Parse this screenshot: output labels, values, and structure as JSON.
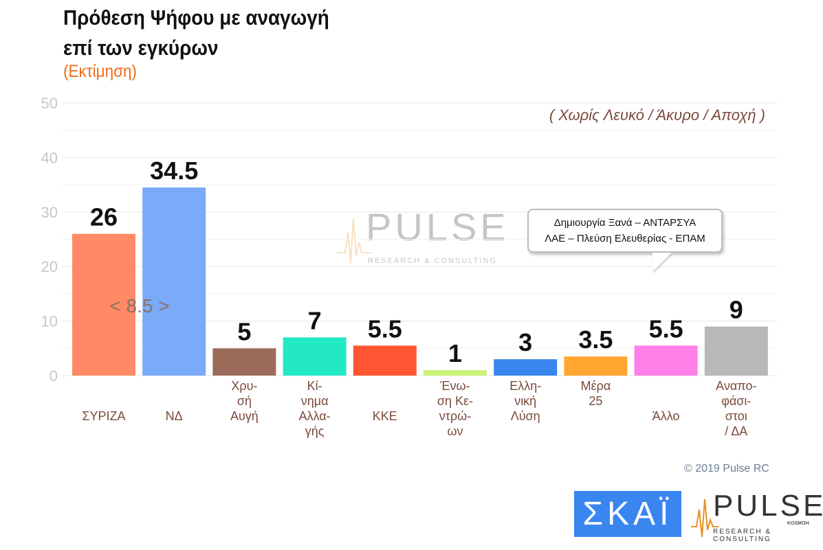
{
  "title_line1": "Πρόθεση Ψήφου με αναγωγή",
  "title_line2": "επί των εγκύρων",
  "subtitle": "(Εκτίμηση)",
  "note": "( Χωρίς Λευκό / Άκυρο / Αποχή )",
  "callout": {
    "line1": "Δημιουργία Ξανά – ΑΝΤΑΡΣΥΑ",
    "line2": "ΛΑΕ – Πλεύση Ελευθερίας - ΕΠΑΜ"
  },
  "copyright": "© 2019 Pulse RC",
  "logos": {
    "skai": "ΣΚΑΪ",
    "pulse": "PULSE",
    "pulse_sub": "RESEARCH & CONSULTING",
    "pulse_kosmon": "KOSMOH"
  },
  "chart_data": {
    "type": "bar",
    "categories": [
      "ΣΥΡΙΖΑ",
      "ΝΔ",
      "Χρυ-\nσή\nΑυγή",
      "Κί-\nνημα\nΑλλα-\nγής",
      "ΚΚΕ",
      "Ένω-\nση Κε-\nντρώ-\nων",
      "Ελλη-\nνική\nΛύση",
      "Μέρα\n25",
      "Άλλο",
      "Αναπο-\nφάσι-\nστοι\n/ ΔΑ"
    ],
    "values": [
      26,
      34.5,
      5,
      7,
      5.5,
      1,
      3,
      3.5,
      5.5,
      9
    ],
    "data_labels": [
      "26",
      "34.5",
      "5",
      "7",
      "5.5",
      "1",
      "3",
      "3.5",
      "5.5",
      "9"
    ],
    "colors": [
      "#ff8a65",
      "#7aaaf8",
      "#9b6b5a",
      "#22e8c4",
      "#ff5533",
      "#ccf27a",
      "#3a86f0",
      "#ffa630",
      "#ff80e8",
      "#b8b8b8"
    ],
    "ylim": [
      0,
      50
    ],
    "yticks": [
      0,
      10,
      20,
      30,
      40,
      50
    ],
    "grid": true,
    "gap_annotation": "< 8.5 >",
    "xlabel": "",
    "ylabel": ""
  }
}
